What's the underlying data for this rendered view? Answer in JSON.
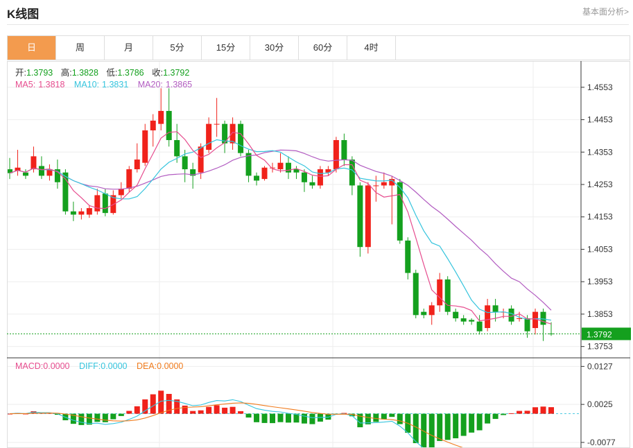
{
  "header": {
    "title": "K线图",
    "link": "基本面分析>"
  },
  "tabs": [
    {
      "label": "日",
      "active": true
    },
    {
      "label": "周"
    },
    {
      "label": "月"
    },
    {
      "label": "5分"
    },
    {
      "label": "15分"
    },
    {
      "label": "30分"
    },
    {
      "label": "60分"
    },
    {
      "label": "4时"
    }
  ],
  "ohlc_info": {
    "open_label": "开:",
    "open": "1.3793",
    "high_label": "高:",
    "high": "1.3828",
    "low_label": "低:",
    "low": "1.3786",
    "close_label": "收:",
    "close": "1.3792"
  },
  "ma_info": {
    "ma5_label": "MA5:",
    "ma5": "1.3818",
    "ma10_label": "MA10:",
    "ma10": "1.3831",
    "ma20_label": "MA20:",
    "ma20": "1.3865"
  },
  "macd_info": {
    "macd_label": "MACD:",
    "macd": "0.0000",
    "diff_label": "DIFF:",
    "diff": "0.0000",
    "dea_label": "DEA:",
    "dea": "0.0000"
  },
  "colors": {
    "up": "#f0221b",
    "down": "#14a01e",
    "ma5": "#e64c8e",
    "ma10": "#35c4dd",
    "ma20": "#b25cc1",
    "dea": "#f07b1c",
    "tab_active": "#f39b4e"
  },
  "chart_data": {
    "type": "candlestick",
    "y_ticks": [
      "1.4553",
      "1.4453",
      "1.4353",
      "1.4253",
      "1.4153",
      "1.4053",
      "1.3953",
      "1.3853",
      "1.3753"
    ],
    "price_range": [
      1.3718,
      1.4634
    ],
    "last_price": "1.3792",
    "last_value": 1.3792,
    "candles": [
      [
        1.43,
        1.4288,
        1.4335,
        1.427
      ],
      [
        1.4295,
        1.4305,
        1.436,
        1.428
      ],
      [
        1.429,
        1.428,
        1.43,
        1.427
      ],
      [
        1.43,
        1.434,
        1.437,
        1.429
      ],
      [
        1.431,
        1.428,
        1.434,
        1.427
      ],
      [
        1.428,
        1.43,
        1.4315,
        1.4265
      ],
      [
        1.43,
        1.426,
        1.433,
        1.424
      ],
      [
        1.429,
        1.417,
        1.43,
        1.416
      ],
      [
        1.417,
        1.416,
        1.42,
        1.414
      ],
      [
        1.416,
        1.417,
        1.418,
        1.4145
      ],
      [
        1.416,
        1.418,
        1.419,
        1.415
      ],
      [
        1.417,
        1.422,
        1.424,
        1.416
      ],
      [
        1.4225,
        1.4165,
        1.424,
        1.4155
      ],
      [
        1.4165,
        1.422,
        1.4235,
        1.416
      ],
      [
        1.422,
        1.424,
        1.426,
        1.421
      ],
      [
        1.424,
        1.43,
        1.431,
        1.423
      ],
      [
        1.43,
        1.433,
        1.438,
        1.429
      ],
      [
        1.432,
        1.442,
        1.444,
        1.431
      ],
      [
        1.442,
        1.445,
        1.447,
        1.437
      ],
      [
        1.444,
        1.448,
        1.455,
        1.442
      ],
      [
        1.448,
        1.439,
        1.455,
        1.437
      ],
      [
        1.439,
        1.434,
        1.444,
        1.432
      ],
      [
        1.434,
        1.43,
        1.436,
        1.426
      ],
      [
        1.43,
        1.428,
        1.432,
        1.424
      ],
      [
        1.429,
        1.437,
        1.438,
        1.427
      ],
      [
        1.436,
        1.444,
        1.446,
        1.435
      ],
      [
        1.444,
        1.444,
        1.452,
        1.44
      ],
      [
        1.444,
        1.438,
        1.445,
        1.435
      ],
      [
        1.438,
        1.444,
        1.446,
        1.436
      ],
      [
        1.444,
        1.435,
        1.445,
        1.434
      ],
      [
        1.435,
        1.428,
        1.436,
        1.426
      ],
      [
        1.428,
        1.4265,
        1.429,
        1.425
      ],
      [
        1.427,
        1.4305,
        1.431,
        1.4265
      ],
      [
        1.4305,
        1.4305,
        1.432,
        1.429
      ],
      [
        1.43,
        1.432,
        1.435,
        1.429
      ],
      [
        1.432,
        1.429,
        1.434,
        1.427
      ],
      [
        1.43,
        1.429,
        1.431,
        1.427
      ],
      [
        1.429,
        1.426,
        1.43,
        1.423
      ],
      [
        1.426,
        1.425,
        1.428,
        1.424
      ],
      [
        1.425,
        1.43,
        1.431,
        1.424
      ],
      [
        1.429,
        1.43,
        1.431,
        1.428
      ],
      [
        1.43,
        1.439,
        1.44,
        1.429
      ],
      [
        1.439,
        1.433,
        1.441,
        1.431
      ],
      [
        1.433,
        1.425,
        1.434,
        1.422
      ],
      [
        1.425,
        1.406,
        1.426,
        1.403
      ],
      [
        1.406,
        1.425,
        1.426,
        1.404
      ],
      [
        1.425,
        1.425,
        1.428,
        1.42
      ],
      [
        1.425,
        1.426,
        1.429,
        1.424
      ],
      [
        1.425,
        1.427,
        1.428,
        1.413
      ],
      [
        1.426,
        1.408,
        1.427,
        1.407
      ],
      [
        1.408,
        1.398,
        1.409,
        1.396
      ],
      [
        1.398,
        1.385,
        1.399,
        1.384
      ],
      [
        1.386,
        1.385,
        1.387,
        1.384
      ],
      [
        1.385,
        1.388,
        1.389,
        1.382
      ],
      [
        1.388,
        1.396,
        1.398,
        1.386
      ],
      [
        1.396,
        1.386,
        1.397,
        1.385
      ],
      [
        1.386,
        1.384,
        1.387,
        1.383
      ],
      [
        1.384,
        1.383,
        1.385,
        1.382
      ],
      [
        1.3835,
        1.383,
        1.384,
        1.382
      ],
      [
        1.383,
        1.38,
        1.385,
        1.379
      ],
      [
        1.381,
        1.388,
        1.39,
        1.38
      ],
      [
        1.388,
        1.386,
        1.39,
        1.383
      ],
      [
        1.386,
        1.386,
        1.387,
        1.384
      ],
      [
        1.387,
        1.383,
        1.388,
        1.382
      ],
      [
        1.384,
        1.384,
        1.386,
        1.383
      ],
      [
        1.384,
        1.38,
        1.385,
        1.378
      ],
      [
        1.381,
        1.386,
        1.387,
        1.379
      ],
      [
        1.386,
        1.382,
        1.387,
        1.377
      ],
      [
        1.3793,
        1.3792,
        1.3828,
        1.3786
      ]
    ],
    "macd_ticks": [
      "0.0127",
      "0.0025",
      "-0.0077"
    ],
    "macd_range": [
      -0.0092,
      0.015
    ]
  }
}
